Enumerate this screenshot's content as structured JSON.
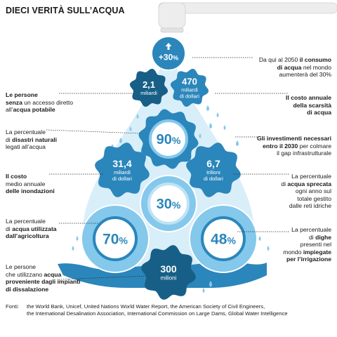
{
  "title": "DIECI VERITÀ SULL’ACQUA",
  "colors": {
    "dark_blue": "#175f87",
    "mid_blue": "#2b86bb",
    "light_blue": "#84c8ec",
    "pale_blue": "#d8eef9",
    "white": "#ffffff"
  },
  "icons": {
    "tap": "tap-icon",
    "arrow": "up-arrow-icon",
    "drops": "water-drop-icon"
  },
  "bubbles": {
    "b30": {
      "value": "+30",
      "unit": "%"
    },
    "b21": {
      "value": "2,1",
      "unit": "miliardi"
    },
    "b470": {
      "value": "470",
      "unit": "miliardi\ndi dollari"
    },
    "b90": {
      "value": "90",
      "unit": "%"
    },
    "b314": {
      "value": "31,4",
      "unit": "miliardi\ndi dollari"
    },
    "b67": {
      "value": "6,7",
      "unit": "trilioni\ndi dollari"
    },
    "b30b": {
      "value": "30",
      "unit": "%"
    },
    "b70": {
      "value": "70",
      "unit": "%"
    },
    "b48": {
      "value": "48",
      "unit": "%"
    },
    "b300": {
      "value": "300",
      "unit": "milioni"
    }
  },
  "labels": {
    "l30": {
      "p1": "Da qui al 2050 ",
      "b1": "il consumo\ndi acqua",
      "p2": " nel mondo\naumenterà del 30%"
    },
    "l21": {
      "b1": "Le persone\nsenza",
      "p1": " un accesso diretto\nall’",
      "b2": "acqua potabile"
    },
    "l470": {
      "b1": "Il costo annuale\ndella scarsità\ndi acqua"
    },
    "l90": {
      "p1": "La percentuale\ndi ",
      "b1": "disastri naturali",
      "p2": "\nlegati all’acqua"
    },
    "linv": {
      "b1": "Gli investimenti necessari\nentro il 2030",
      "p1": " per colmare\nil gap infrastrutturale"
    },
    "l314": {
      "b1": "Il costo",
      "p1": "\nmedio annuale\n",
      "b2": "delle inondazioni"
    },
    "l67": {
      "p1": "La percentuale\ndi ",
      "b1": "acqua sprecata",
      "p2": "\nogni anno sul\ntotale gestito\ndalle reti idriche"
    },
    "l70": {
      "p1": "La percentuale\ndi ",
      "b1": "acqua utilizzata\ndall’agricoltura"
    },
    "l48": {
      "p1": "La percentuale\ndi ",
      "b1": "dighe",
      "p2": "\npresenti nel\nmondo ",
      "b2": "impiegate\nper l’irrigazione"
    },
    "l300": {
      "p1": "Le persone\nche utilizzano ",
      "b1": "acqua\nproveniente dagli impianti\ndi dissalazione"
    }
  },
  "sources": {
    "label": "Fonti:",
    "text": "the World Bank, Unicef, United Nations World Water Report, the American Society of Civil Engineers,\nthe International Desalination Association, International Commission on Large Dams, Global Water Intelligence"
  }
}
